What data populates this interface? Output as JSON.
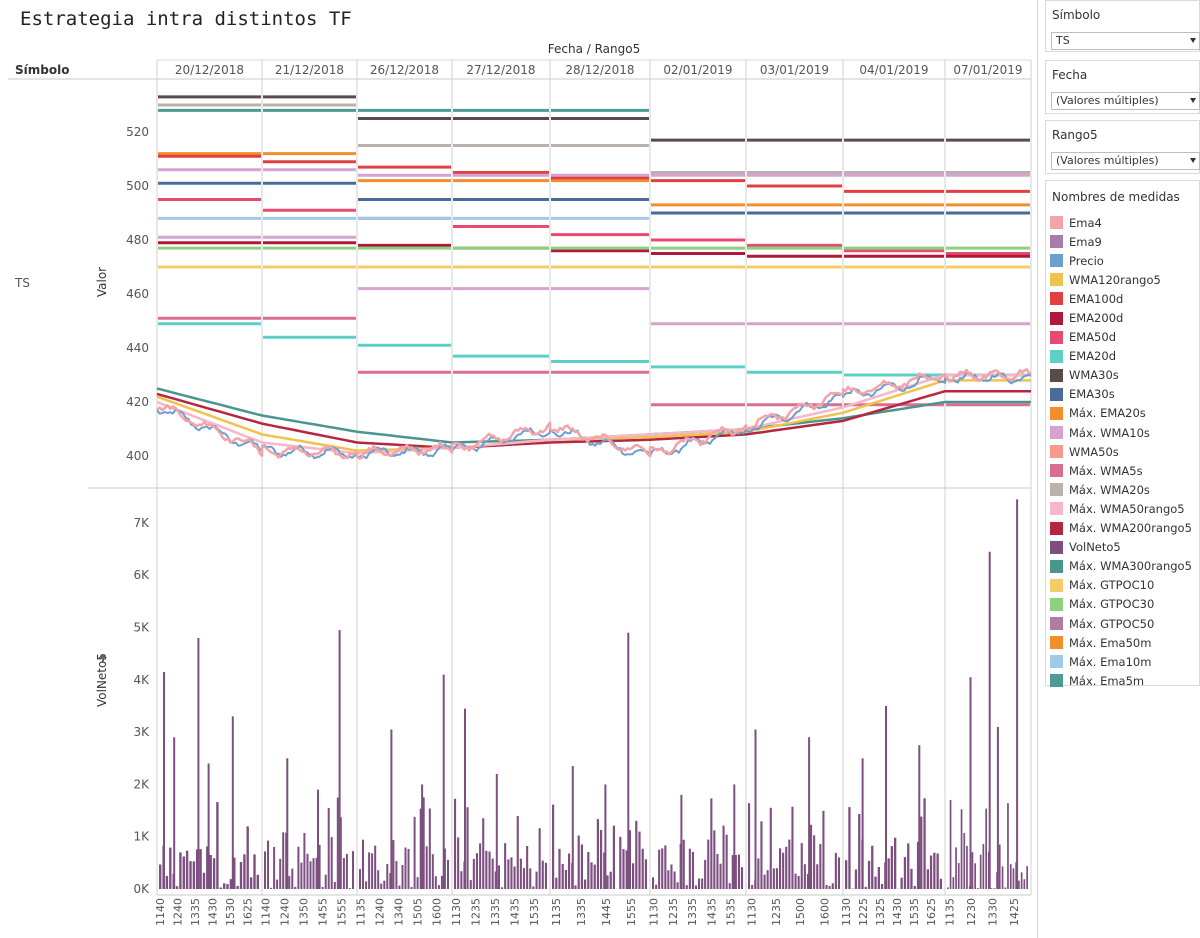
{
  "title": "Estrategia intra distintos TF",
  "sidebar": {
    "simbolo": {
      "label": "Símbolo",
      "value": "TS"
    },
    "fecha": {
      "label": "Fecha",
      "value": "(Valores múltiples)"
    },
    "rango": {
      "label": "Rango5",
      "value": "(Valores múltiples)"
    },
    "legend_title": "Nombres de medidas",
    "legend": [
      {
        "name": "Ema4",
        "color": "#f4a3a8"
      },
      {
        "name": "Ema9",
        "color": "#a77cad"
      },
      {
        "name": "Precio",
        "color": "#6a9fcf"
      },
      {
        "name": "WMA120rango5",
        "color": "#f0c24e"
      },
      {
        "name": "EMA100d",
        "color": "#e0403f"
      },
      {
        "name": "EMA200d",
        "color": "#b0183a"
      },
      {
        "name": "EMA50d",
        "color": "#e94b6e"
      },
      {
        "name": "EMA20d",
        "color": "#5ccfc9"
      },
      {
        "name": "WMA30s",
        "color": "#5a4a4a"
      },
      {
        "name": "EMA30s",
        "color": "#4a6a9a"
      },
      {
        "name": "Máx. EMA20s",
        "color": "#f28e2c"
      },
      {
        "name": "Máx. WMA10s",
        "color": "#d6a3d1"
      },
      {
        "name": "WMA50s",
        "color": "#f59a8e"
      },
      {
        "name": "Máx. WMA5s",
        "color": "#d96e8e"
      },
      {
        "name": "Máx. WMA20s",
        "color": "#bab0ac"
      },
      {
        "name": "Máx. WMA50rango5",
        "color": "#f7b6c9"
      },
      {
        "name": "Máx. WMA200rango5",
        "color": "#b5263f"
      },
      {
        "name": "VolNeto5",
        "color": "#7d4f80"
      },
      {
        "name": "Máx. WMA300rango5",
        "color": "#4b958f"
      },
      {
        "name": "Máx. GTPOC10",
        "color": "#f3cc66"
      },
      {
        "name": "Máx. GTPOC30",
        "color": "#8cd17d"
      },
      {
        "name": "Máx. GTPOC50",
        "color": "#b07aa1"
      },
      {
        "name": "Máx. Ema50m",
        "color": "#f28e2c"
      },
      {
        "name": "Máx. Ema10m",
        "color": "#a0cbe8"
      },
      {
        "name": "Máx. Ema5m",
        "color": "#4e9a94"
      }
    ]
  },
  "chart_data": {
    "type": "line",
    "header_title": "Fecha / Rango5",
    "row_header": "Símbolo",
    "row_value": "TS",
    "dates": [
      "20/12/2018",
      "21/12/2018",
      "26/12/2018",
      "27/12/2018",
      "28/12/2018",
      "02/01/2019",
      "03/01/2019",
      "04/01/2019",
      "07/01/2019"
    ],
    "top_panel": {
      "ylabel": "Valor",
      "ylim": [
        393,
        548
      ],
      "yticks": [
        400,
        420,
        440,
        460,
        480,
        500,
        520
      ],
      "levels": [
        {
          "color": "#5a4a4a",
          "values": [
            533,
            533,
            525,
            525,
            525,
            517,
            517,
            517,
            517
          ]
        },
        {
          "color": "#bab0ac",
          "values": [
            530,
            530,
            515,
            515,
            515,
            505,
            505,
            505,
            505
          ]
        },
        {
          "color": "#4e9a94",
          "values": [
            528,
            528,
            528,
            528,
            528,
            null,
            null,
            null,
            null
          ]
        },
        {
          "color": "#f28e2c",
          "values": [
            512,
            512,
            502,
            502,
            502,
            493,
            493,
            493,
            493
          ]
        },
        {
          "color": "#e0403f",
          "values": [
            511,
            509,
            507,
            505,
            503,
            502,
            500,
            498,
            498
          ]
        },
        {
          "color": "#d6a3d1",
          "values": [
            506,
            506,
            504,
            504,
            504,
            504,
            504,
            504,
            504
          ]
        },
        {
          "color": "#4a6a9a",
          "values": [
            501,
            501,
            495,
            495,
            495,
            490,
            490,
            490,
            490
          ]
        },
        {
          "color": "#e94b6e",
          "values": [
            495,
            491,
            488,
            485,
            482,
            480,
            478,
            476,
            475
          ]
        },
        {
          "color": "#a0cbe8",
          "values": [
            488,
            488,
            488,
            488,
            488,
            null,
            null,
            null,
            null
          ]
        },
        {
          "color": "#d6a3d1",
          "values": [
            481,
            481,
            462,
            462,
            462,
            449,
            449,
            449,
            449
          ]
        },
        {
          "color": "#b0183a",
          "values": [
            479,
            479,
            478,
            477,
            476,
            475,
            474,
            474,
            474
          ]
        },
        {
          "color": "#8cd17d",
          "values": [
            477,
            477,
            477,
            477,
            477,
            477,
            477,
            477,
            477
          ]
        },
        {
          "color": "#f3cc66",
          "values": [
            470,
            470,
            470,
            470,
            470,
            470,
            470,
            470,
            470
          ]
        },
        {
          "color": "#d96e8e",
          "values": [
            451,
            451,
            431,
            431,
            431,
            419,
            419,
            419,
            419
          ]
        },
        {
          "color": "#5ccfc9",
          "values": [
            449,
            444,
            441,
            437,
            435,
            433,
            431,
            430,
            430
          ]
        }
      ],
      "series": [
        {
          "name": "Máx. WMA300rango5",
          "color": "#4b958f",
          "values": [
            425,
            415,
            409,
            405,
            406,
            408,
            410,
            414,
            420
          ]
        },
        {
          "name": "Máx. WMA200rango5",
          "color": "#b5263f",
          "values": [
            423,
            412,
            405,
            403,
            405,
            406,
            408,
            413,
            424
          ]
        },
        {
          "name": "WMA120rango5",
          "color": "#f0c24e",
          "values": [
            422,
            408,
            402,
            403,
            406,
            407,
            409,
            416,
            428
          ]
        },
        {
          "name": "Máx. WMA50rango5",
          "color": "#f7b6c9",
          "values": [
            420,
            405,
            401,
            403,
            406,
            408,
            410,
            418,
            430
          ]
        },
        {
          "name": "Precio",
          "color": "#6a9fcf",
          "values": [
            418,
            402,
            401,
            402,
            410,
            400,
            410,
            422,
            429
          ]
        },
        {
          "name": "Ema4",
          "color": "#f4a3a8",
          "values": [
            419,
            402,
            401,
            403,
            411,
            401,
            411,
            423,
            430
          ]
        }
      ]
    },
    "bottom_panel": {
      "ylabel": "VolNeto5",
      "ylim": [
        0,
        8000
      ],
      "yticks": [
        {
          "v": 0,
          "label": "0K"
        },
        {
          "v": 1000,
          "label": "1K"
        },
        {
          "v": 2000,
          "label": "2K"
        },
        {
          "v": 3000,
          "label": "3K"
        },
        {
          "v": 4000,
          "label": "4K"
        },
        {
          "v": 5000,
          "label": "5K"
        },
        {
          "v": 6000,
          "label": "6K"
        },
        {
          "v": 7000,
          "label": "7K"
        }
      ],
      "color": "#7d4f80",
      "peaks": [
        {
          "d": 0,
          "v": 4150
        },
        {
          "d": 0,
          "v": 4800
        },
        {
          "d": 0,
          "v": 3300
        },
        {
          "d": 0,
          "v": 2900
        },
        {
          "d": 0,
          "v": 2400
        },
        {
          "d": 1,
          "v": 4950
        },
        {
          "d": 1,
          "v": 2500
        },
        {
          "d": 1,
          "v": 1900
        },
        {
          "d": 2,
          "v": 4100
        },
        {
          "d": 2,
          "v": 3050
        },
        {
          "d": 2,
          "v": 2000
        },
        {
          "d": 3,
          "v": 3450
        },
        {
          "d": 3,
          "v": 2200
        },
        {
          "d": 4,
          "v": 4900
        },
        {
          "d": 4,
          "v": 2350
        },
        {
          "d": 4,
          "v": 2000
        },
        {
          "d": 5,
          "v": 2000
        },
        {
          "d": 5,
          "v": 1800
        },
        {
          "d": 6,
          "v": 2900
        },
        {
          "d": 6,
          "v": 3050
        },
        {
          "d": 7,
          "v": 3500
        },
        {
          "d": 7,
          "v": 2750
        },
        {
          "d": 7,
          "v": 2500
        },
        {
          "d": 8,
          "v": 6450
        },
        {
          "d": 8,
          "v": 7450
        },
        {
          "d": 8,
          "v": 4050
        },
        {
          "d": 8,
          "v": 3100
        }
      ]
    },
    "x_ticks": [
      [
        "1140",
        "1240",
        "1335",
        "1430",
        "1530",
        "1625"
      ],
      [
        "1140",
        "1240",
        "1350",
        "1455",
        "1555"
      ],
      [
        "1135",
        "1240",
        "1340",
        "1505",
        "1600"
      ],
      [
        "1130",
        "1235",
        "1335",
        "1435",
        "1535"
      ],
      [
        "1135",
        "1335",
        "1445",
        "1555"
      ],
      [
        "1130",
        "1235",
        "1335",
        "1435",
        "1535"
      ],
      [
        "1130",
        "1235",
        "1500",
        "1600"
      ],
      [
        "1130",
        "1225",
        "1325",
        "1430",
        "1535",
        "1625"
      ],
      [
        "1135",
        "1230",
        "1330",
        "1425"
      ]
    ]
  }
}
